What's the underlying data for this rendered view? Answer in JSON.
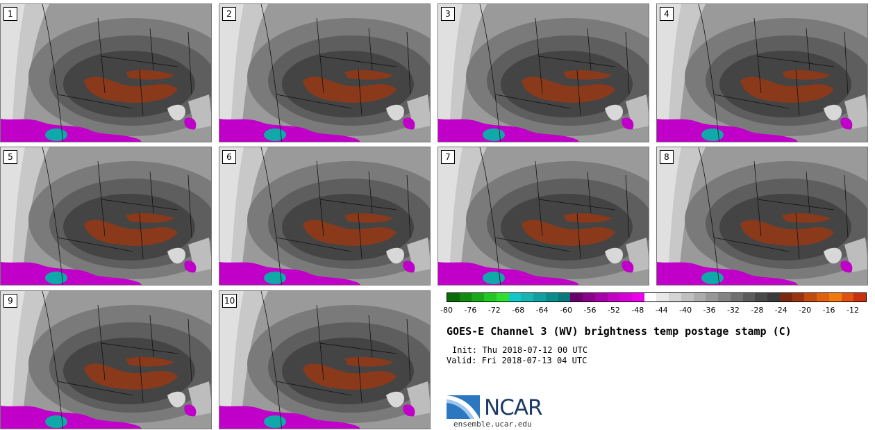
{
  "title": "GOES-E Channel 3 (WV) brightness temp postage stamp (C)",
  "init": "Init: Thu 2018-07-12 00 UTC",
  "valid": "Valid: Fri 2018-07-13 04 UTC",
  "logo": {
    "text": "NCAR",
    "url": "ensemble.ucar.edu"
  },
  "panels": [
    "1",
    "2",
    "3",
    "4",
    "5",
    "6",
    "7",
    "8",
    "9",
    "10"
  ],
  "colorbar": {
    "ticks": [
      "-80",
      "-76",
      "-72",
      "-68",
      "-64",
      "-60",
      "-56",
      "-52",
      "-48",
      "-44",
      "-40",
      "-36",
      "-32",
      "-28",
      "-24",
      "-20",
      "-16",
      "-12"
    ],
    "colors": [
      "#0a6a0a",
      "#108a10",
      "#18a818",
      "#22c822",
      "#30e030",
      "#10c8c8",
      "#18b4b4",
      "#10a0a0",
      "#0a8c8c",
      "#087878",
      "#6a006a",
      "#8a008a",
      "#a800a8",
      "#c400c4",
      "#d800d8",
      "#ec00ec",
      "#ffffff",
      "#e8e8e8",
      "#d4d4d4",
      "#c0c0c0",
      "#acacac",
      "#989898",
      "#848484",
      "#707070",
      "#5c5c5c",
      "#484848",
      "#3a3a3a",
      "#7a2a10",
      "#9a3410",
      "#c04a10",
      "#e06010",
      "#f07a10",
      "#e05010",
      "#c83010"
    ]
  }
}
